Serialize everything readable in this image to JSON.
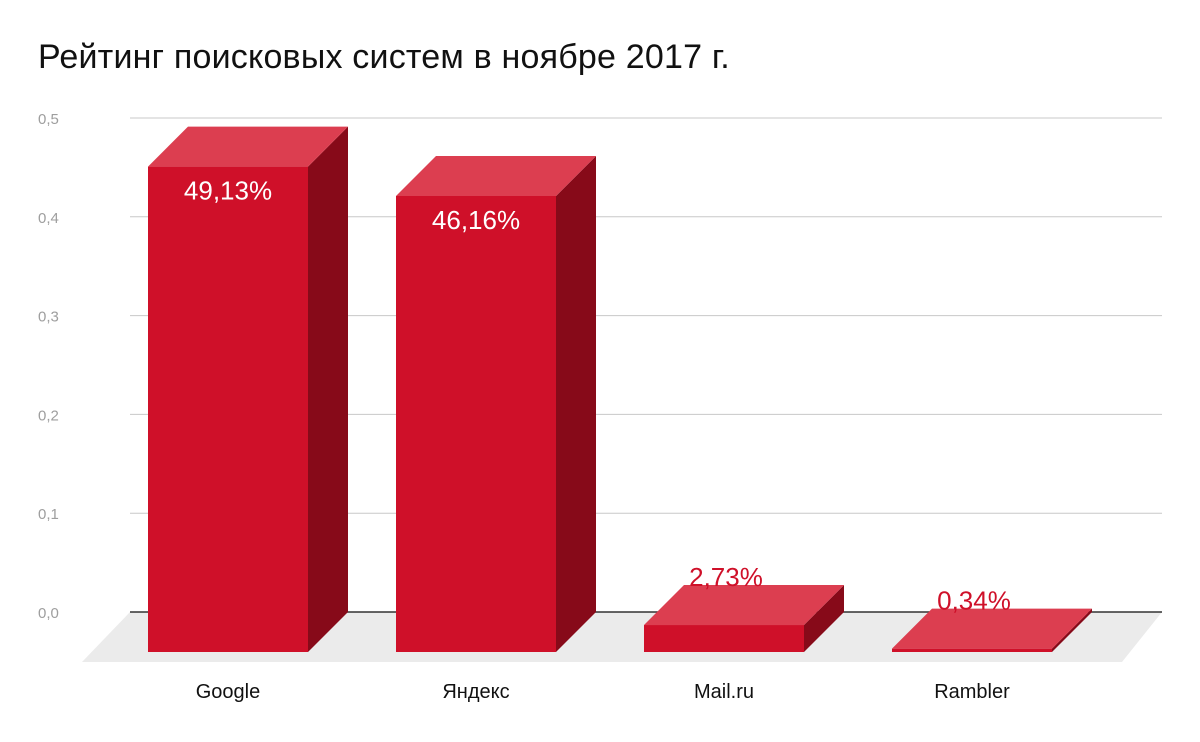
{
  "chart_data": {
    "type": "bar",
    "title": "Рейтинг поисковых систем в ноябре 2017 г.",
    "categories": [
      "Google",
      "Яндекс",
      "Mail.ru",
      "Rambler"
    ],
    "values": [
      0.4913,
      0.4616,
      0.0273,
      0.0034
    ],
    "data_labels": [
      "49,13%",
      "46,16%",
      "2,73%",
      "0,34%"
    ],
    "ylim": [
      0,
      0.5
    ],
    "yticks": [
      "0,0",
      "0,1",
      "0,2",
      "0,3",
      "0,4",
      "0,5"
    ],
    "grid": true,
    "legend": "none",
    "style": "3d",
    "colors": {
      "front": "#cf1029",
      "top": "#dc3e50",
      "side": "#870a19",
      "floor": "#ebebeb",
      "label_inside": "#ffffff",
      "label_outside": "#cf1029"
    }
  }
}
